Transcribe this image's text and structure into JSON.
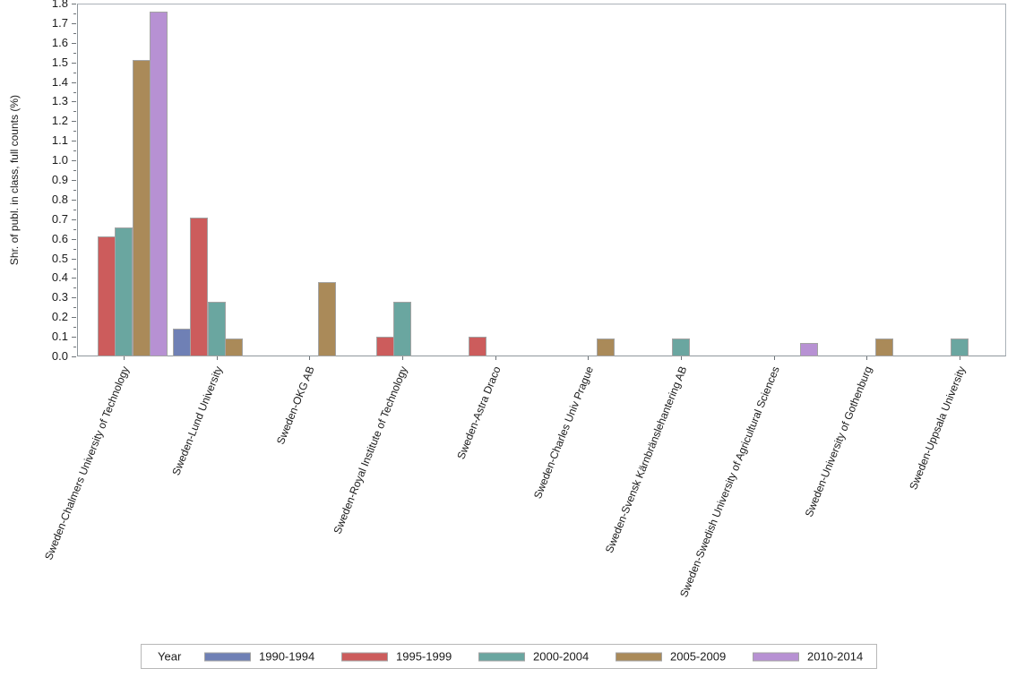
{
  "chart_data": {
    "type": "bar",
    "title": "",
    "xlabel": "",
    "ylabel": "Shr. of publ. in class, full counts (%)",
    "ylim": [
      0,
      1.8
    ],
    "ytick_step": 0.1,
    "yminor_step": 0.05,
    "grid": false,
    "legend_position": "bottom",
    "legend_title": "Year",
    "categories": [
      "Sweden-Chalmers University of Technology",
      "Sweden-Lund University",
      "Sweden-OKG AB",
      "Sweden-Royal Institute of Technology",
      "Sweden-Astra Draco",
      "Sweden-Charles Univ Prague",
      "Sweden-Svensk Kärnbränslehantering AB",
      "Sweden-Swedish University of Agricultural Sciences",
      "Sweden-University of Gothenburg",
      "Sweden-Uppsala University"
    ],
    "series": [
      {
        "name": "1990-1994",
        "color": "#6f80b5",
        "values": [
          0,
          0.14,
          0,
          0,
          0,
          0,
          0,
          0,
          0,
          0
        ]
      },
      {
        "name": "1995-1999",
        "color": "#cc5c5c",
        "values": [
          0.61,
          0.71,
          0,
          0.1,
          0.1,
          0,
          0,
          0,
          0,
          0
        ]
      },
      {
        "name": "2000-2004",
        "color": "#6aa6a0",
        "values": [
          0.66,
          0.28,
          0,
          0.28,
          0,
          0,
          0.09,
          0,
          0,
          0.09
        ]
      },
      {
        "name": "2005-2009",
        "color": "#aa8a59",
        "values": [
          1.51,
          0.09,
          0.38,
          0,
          0,
          0.09,
          0,
          0,
          0.09,
          0
        ]
      },
      {
        "name": "2010-2014",
        "color": "#b791d3",
        "values": [
          1.76,
          0,
          0,
          0,
          0,
          0,
          0,
          0.07,
          0,
          0
        ]
      }
    ],
    "bar_border_color": "#a3a3a3",
    "axis_color": "#8f979c"
  }
}
